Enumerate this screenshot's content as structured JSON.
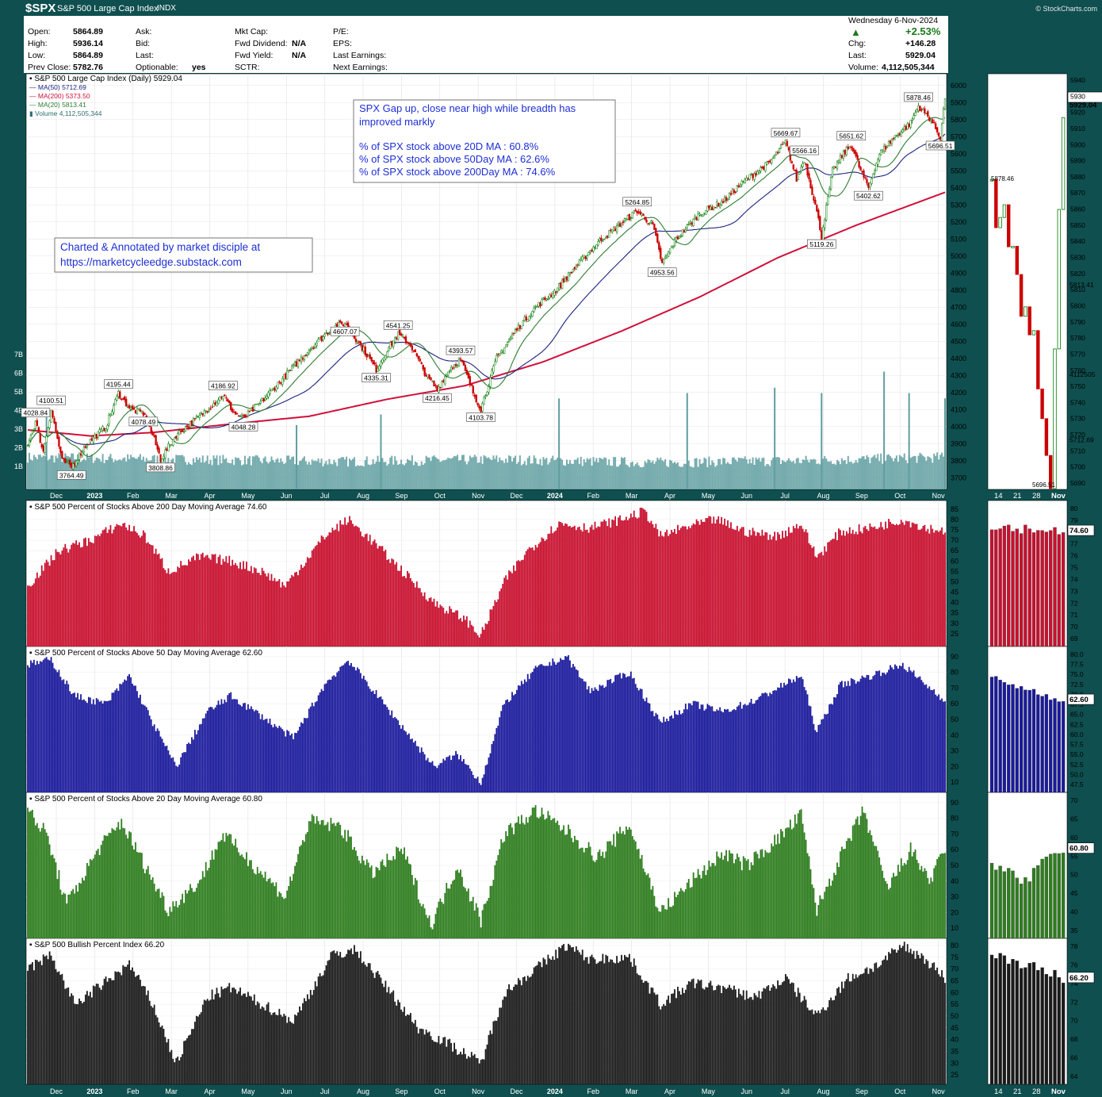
{
  "header": {
    "symbol": "$SPX",
    "name": "S&P 500 Large Cap Index",
    "type": "INDX",
    "credit": "© StockCharts.com"
  },
  "quote": {
    "open_label": "Open:",
    "open": "5864.89",
    "high_label": "High:",
    "high": "5936.14",
    "low_label": "Low:",
    "low": "5864.89",
    "prev_label": "Prev Close:",
    "prev": "5782.76",
    "ask_label": "Ask:",
    "bid_label": "Bid:",
    "last_label": "Last:",
    "optionable_label": "Optionable:",
    "optionable": "yes",
    "mktcap_label": "Mkt Cap:",
    "fwddiv_label": "Fwd Dividend:",
    "fwddiv": "N/A",
    "fwdyield_label": "Fwd Yield:",
    "fwdyield": "N/A",
    "sctr_label": "SCTR:",
    "pe_label": "P/E:",
    "eps_label": "EPS:",
    "lastearn_label": "Last Earnings:",
    "nextearn_label": "Next Earnings:",
    "date": "Wednesday  6-Nov-2024",
    "pct": "+2.53%",
    "chg_label": "Chg:",
    "chg": "+146.28",
    "last2_label": "Last:",
    "last": "5929.04",
    "volume_label": "Volume:",
    "volume": "4,112,505,344"
  },
  "colors": {
    "frame": "#0f4f4f",
    "up": "#007a00",
    "down": "#cc0000",
    "ma50": "#1a237e",
    "ma200": "#d0103a",
    "ma20": "#2e7d32",
    "volume": "#5f9ea0",
    "p200": "#c8102e",
    "p50": "#1a1a9c",
    "p20": "#2e7d1e",
    "bpi": "#1a1a1a"
  },
  "legend": {
    "title": "S&P 500 Large Cap Index (Daily) 5929.04",
    "ma50": "MA(50) 5712.69",
    "ma200": "MA(200) 5373.50",
    "ma20": "MA(20) 5813.41",
    "volume": "Volume 4,112,505,344"
  },
  "annotations": {
    "box1_line1": "SPX Gap up, close near high while breadth has",
    "box1_line2": "improved markly",
    "box1_line3": "% of SPX stock above 20D MA : 60.8%",
    "box1_line4": "% of SPX stock above 50Day MA :   62.6%",
    "box1_line5": "% of SPX stock above 200Day MA : 74.6%",
    "box2_line1": "Charted & Annotated by market disciple at",
    "box2_line2": "https://marketcycleedge.substack.com"
  },
  "chart_data": [
    {
      "type": "line",
      "title": "S&P 500 Large Cap Index (Daily) 5929.04",
      "x_months": [
        "Dec",
        "2023",
        "Feb",
        "Mar",
        "Apr",
        "May",
        "Jun",
        "Jul",
        "Aug",
        "Sep",
        "Oct",
        "Nov",
        "Dec",
        "2024",
        "Feb",
        "Mar",
        "Apr",
        "May",
        "Jun",
        "Jul",
        "Aug",
        "Sep",
        "Oct",
        "Nov"
      ],
      "ylim": [
        3650,
        6050
      ],
      "y_ticks": [
        3700,
        3800,
        3900,
        4000,
        4100,
        4200,
        4300,
        4400,
        4500,
        4600,
        4700,
        4800,
        4900,
        5000,
        5100,
        5200,
        5300,
        5400,
        5500,
        5600,
        5700,
        5800,
        5900,
        6000
      ],
      "volume_ticks": [
        "1B",
        "2B",
        "3B",
        "4B",
        "5B",
        "6B",
        "7B"
      ],
      "price_anchors": [
        [
          0,
          3900
        ],
        [
          5,
          4028.84
        ],
        [
          10,
          3850
        ],
        [
          15,
          4100.51
        ],
        [
          22,
          3800
        ],
        [
          28,
          3764.49
        ],
        [
          38,
          3900
        ],
        [
          50,
          4000
        ],
        [
          58,
          4195.44
        ],
        [
          66,
          4100
        ],
        [
          74,
          4078.49
        ],
        [
          80,
          3950
        ],
        [
          85,
          3808.86
        ],
        [
          95,
          3950
        ],
        [
          110,
          4060
        ],
        [
          125,
          4186.92
        ],
        [
          132,
          4080
        ],
        [
          138,
          4048.28
        ],
        [
          150,
          4150
        ],
        [
          165,
          4300
        ],
        [
          180,
          4450
        ],
        [
          195,
          4580
        ],
        [
          203,
          4607.07
        ],
        [
          215,
          4450
        ],
        [
          223,
          4335.31
        ],
        [
          230,
          4450
        ],
        [
          237,
          4541.25
        ],
        [
          245,
          4480
        ],
        [
          255,
          4300
        ],
        [
          262,
          4216.45
        ],
        [
          270,
          4340
        ],
        [
          277,
          4393.57
        ],
        [
          285,
          4200
        ],
        [
          290,
          4103.78
        ],
        [
          300,
          4400
        ],
        [
          312,
          4560
        ],
        [
          325,
          4700
        ],
        [
          338,
          4800
        ],
        [
          350,
          4930
        ],
        [
          365,
          5080
        ],
        [
          378,
          5180
        ],
        [
          390,
          5264.85
        ],
        [
          400,
          5180
        ],
        [
          406,
          4953.56
        ],
        [
          415,
          5100
        ],
        [
          430,
          5250
        ],
        [
          445,
          5320
        ],
        [
          460,
          5450
        ],
        [
          475,
          5550
        ],
        [
          485,
          5669.67
        ],
        [
          492,
          5450
        ],
        [
          497,
          5566.16
        ],
        [
          504,
          5300
        ],
        [
          508,
          5119.26
        ],
        [
          515,
          5500
        ],
        [
          522,
          5600
        ],
        [
          527,
          5651.62
        ],
        [
          533,
          5500
        ],
        [
          538,
          5402.62
        ],
        [
          545,
          5600
        ],
        [
          555,
          5700
        ],
        [
          565,
          5780
        ],
        [
          570,
          5878.46
        ],
        [
          578,
          5800
        ],
        [
          584,
          5696.51
        ],
        [
          587,
          5929.04
        ]
      ],
      "ma200_anchors": [
        [
          0,
          3980
        ],
        [
          40,
          3945
        ],
        [
          80,
          3965
        ],
        [
          130,
          4015
        ],
        [
          180,
          4060
        ],
        [
          230,
          4160
        ],
        [
          280,
          4240
        ],
        [
          330,
          4380
        ],
        [
          380,
          4560
        ],
        [
          430,
          4760
        ],
        [
          480,
          4990
        ],
        [
          530,
          5180
        ],
        [
          587,
          5373.5
        ]
      ],
      "price_labels": [
        {
          "text": "4028.84",
          "x": 5,
          "y": 4028.84
        },
        {
          "text": "4100.51",
          "x": 15,
          "y": 4100.51
        },
        {
          "text": "3764.49",
          "x": 28,
          "y": 3764.49
        },
        {
          "text": "4195.44",
          "x": 58,
          "y": 4195.44
        },
        {
          "text": "4078.49",
          "x": 74,
          "y": 4078.49
        },
        {
          "text": "3808.86",
          "x": 85,
          "y": 3808.86
        },
        {
          "text": "4186.92",
          "x": 125,
          "y": 4186.92
        },
        {
          "text": "4048.28",
          "x": 138,
          "y": 4048.28
        },
        {
          "text": "4607.07",
          "x": 203,
          "y": 4607.07
        },
        {
          "text": "4335.31",
          "x": 223,
          "y": 4335.31
        },
        {
          "text": "4541.25",
          "x": 237,
          "y": 4541.25
        },
        {
          "text": "4216.45",
          "x": 262,
          "y": 4216.45
        },
        {
          "text": "4393.57",
          "x": 277,
          "y": 4393.57
        },
        {
          "text": "4103.78",
          "x": 290,
          "y": 4103.78
        },
        {
          "text": "5264.85",
          "x": 390,
          "y": 5264.85
        },
        {
          "text": "4953.56",
          "x": 406,
          "y": 4953.56
        },
        {
          "text": "5669.67",
          "x": 485,
          "y": 5669.67
        },
        {
          "text": "5566.16",
          "x": 497,
          "y": 5566.16
        },
        {
          "text": "5119.26",
          "x": 508,
          "y": 5119.26
        },
        {
          "text": "5651.62",
          "x": 527,
          "y": 5651.62
        },
        {
          "text": "5402.62",
          "x": 538,
          "y": 5402.62
        },
        {
          "text": "5878.46",
          "x": 570,
          "y": 5878.46
        },
        {
          "text": "5696.51",
          "x": 584,
          "y": 5696.51
        }
      ],
      "last_value": "5929.04"
    },
    {
      "type": "bar",
      "title": "S&P 500 Percent of Stocks Above 200 Day Moving Average 74.60",
      "ylim": [
        20,
        88
      ],
      "y_ticks": [
        25,
        30,
        35,
        40,
        45,
        50,
        55,
        60,
        65,
        70,
        75,
        80,
        85
      ],
      "anchors": [
        [
          0,
          48
        ],
        [
          20,
          65
        ],
        [
          40,
          70
        ],
        [
          60,
          78
        ],
        [
          75,
          72
        ],
        [
          90,
          55
        ],
        [
          110,
          62
        ],
        [
          130,
          60
        ],
        [
          150,
          55
        ],
        [
          165,
          48
        ],
        [
          190,
          72
        ],
        [
          205,
          80
        ],
        [
          220,
          70
        ],
        [
          240,
          55
        ],
        [
          260,
          40
        ],
        [
          280,
          32
        ],
        [
          290,
          24
        ],
        [
          305,
          50
        ],
        [
          320,
          65
        ],
        [
          340,
          78
        ],
        [
          360,
          76
        ],
        [
          380,
          80
        ],
        [
          395,
          84
        ],
        [
          405,
          72
        ],
        [
          420,
          76
        ],
        [
          440,
          80
        ],
        [
          460,
          74
        ],
        [
          480,
          72
        ],
        [
          495,
          78
        ],
        [
          505,
          62
        ],
        [
          520,
          74
        ],
        [
          540,
          76
        ],
        [
          560,
          80
        ],
        [
          575,
          76
        ],
        [
          587,
          74.6
        ]
      ],
      "last_value": "74.60"
    },
    {
      "type": "bar",
      "title": "S&P 500 Percent of Stocks Above 50 Day Moving Average 62.60",
      "ylim": [
        5,
        95
      ],
      "y_ticks": [
        10,
        20,
        30,
        40,
        50,
        60,
        70,
        80,
        90
      ],
      "anchors": [
        [
          0,
          85
        ],
        [
          15,
          88
        ],
        [
          30,
          65
        ],
        [
          50,
          60
        ],
        [
          65,
          78
        ],
        [
          80,
          48
        ],
        [
          95,
          20
        ],
        [
          115,
          55
        ],
        [
          130,
          65
        ],
        [
          150,
          52
        ],
        [
          170,
          38
        ],
        [
          190,
          72
        ],
        [
          205,
          88
        ],
        [
          220,
          70
        ],
        [
          240,
          45
        ],
        [
          260,
          20
        ],
        [
          275,
          28
        ],
        [
          290,
          10
        ],
        [
          305,
          60
        ],
        [
          325,
          82
        ],
        [
          345,
          90
        ],
        [
          360,
          68
        ],
        [
          385,
          80
        ],
        [
          405,
          48
        ],
        [
          425,
          60
        ],
        [
          445,
          55
        ],
        [
          465,
          62
        ],
        [
          480,
          70
        ],
        [
          495,
          78
        ],
        [
          505,
          42
        ],
        [
          520,
          72
        ],
        [
          540,
          78
        ],
        [
          560,
          85
        ],
        [
          575,
          72
        ],
        [
          587,
          62.6
        ]
      ],
      "last_value": "62.60"
    },
    {
      "type": "bar",
      "title": "S&P 500 Percent of Stocks Above 20 Day Moving Average 60.80",
      "ylim": [
        5,
        95
      ],
      "y_ticks": [
        10,
        20,
        30,
        40,
        50,
        60,
        70,
        80,
        90
      ],
      "anchors": [
        [
          0,
          85
        ],
        [
          12,
          70
        ],
        [
          25,
          25
        ],
        [
          45,
          60
        ],
        [
          60,
          78
        ],
        [
          75,
          50
        ],
        [
          90,
          22
        ],
        [
          110,
          40
        ],
        [
          125,
          70
        ],
        [
          145,
          50
        ],
        [
          165,
          30
        ],
        [
          180,
          78
        ],
        [
          200,
          75
        ],
        [
          220,
          45
        ],
        [
          240,
          60
        ],
        [
          258,
          12
        ],
        [
          275,
          50
        ],
        [
          290,
          15
        ],
        [
          305,
          70
        ],
        [
          325,
          85
        ],
        [
          345,
          72
        ],
        [
          365,
          55
        ],
        [
          385,
          76
        ],
        [
          405,
          20
        ],
        [
          425,
          40
        ],
        [
          445,
          58
        ],
        [
          460,
          50
        ],
        [
          478,
          65
        ],
        [
          495,
          82
        ],
        [
          505,
          22
        ],
        [
          520,
          55
        ],
        [
          535,
          85
        ],
        [
          550,
          35
        ],
        [
          565,
          60
        ],
        [
          578,
          40
        ],
        [
          587,
          60.8
        ]
      ],
      "last_value": "60.80"
    },
    {
      "type": "bar",
      "title": "S&P 500 Bullish Percent Index 66.20",
      "ylim": [
        22,
        82
      ],
      "y_ticks": [
        25,
        30,
        35,
        40,
        45,
        50,
        55,
        60,
        65,
        70,
        75,
        80
      ],
      "anchors": [
        [
          0,
          70
        ],
        [
          15,
          76
        ],
        [
          30,
          55
        ],
        [
          45,
          62
        ],
        [
          65,
          72
        ],
        [
          80,
          55
        ],
        [
          95,
          30
        ],
        [
          115,
          58
        ],
        [
          130,
          62
        ],
        [
          150,
          55
        ],
        [
          170,
          48
        ],
        [
          195,
          76
        ],
        [
          210,
          78
        ],
        [
          230,
          62
        ],
        [
          250,
          45
        ],
        [
          270,
          38
        ],
        [
          290,
          30
        ],
        [
          305,
          60
        ],
        [
          325,
          70
        ],
        [
          345,
          80
        ],
        [
          360,
          74
        ],
        [
          385,
          75
        ],
        [
          405,
          55
        ],
        [
          425,
          64
        ],
        [
          445,
          62
        ],
        [
          465,
          58
        ],
        [
          485,
          66
        ],
        [
          505,
          50
        ],
        [
          525,
          66
        ],
        [
          545,
          72
        ],
        [
          560,
          80
        ],
        [
          575,
          74
        ],
        [
          587,
          66.2
        ]
      ],
      "last_value": "66.20"
    }
  ],
  "detail_panels": [
    {
      "x_ticks": [
        "14",
        "21",
        "28",
        "Nov"
      ],
      "y_ticks": [
        "5690",
        "5700",
        "5710",
        "5720",
        "5730",
        "5740",
        "5750",
        "5760",
        "5770",
        "5780",
        "5790",
        "5800",
        "5810",
        "5820",
        "5830",
        "5840",
        "5850",
        "5860",
        "5870",
        "5880",
        "5890",
        "5900",
        "5910",
        "5920",
        "5930",
        "5940"
      ],
      "labels": [
        "5929.04",
        "5813.41",
        "5712.69",
        "4112505",
        "5878.46",
        "5696.51"
      ]
    },
    {
      "y_ticks": [
        "69",
        "70",
        "71",
        "72",
        "73",
        "74",
        "75",
        "76",
        "77",
        "78",
        "79",
        "80"
      ],
      "label": "74.60"
    },
    {
      "y_ticks": [
        "47.5",
        "50.0",
        "52.5",
        "55.0",
        "57.5",
        "60.0",
        "62.5",
        "65.0",
        "67.5",
        "70.0",
        "72.5",
        "75.0",
        "77.5",
        "80.0"
      ],
      "label": "62.60"
    },
    {
      "y_ticks": [
        "35",
        "40",
        "45",
        "50",
        "55",
        "60",
        "65",
        "70"
      ],
      "label": "60.80"
    },
    {
      "x_ticks": [
        "14",
        "21",
        "28",
        "Nov"
      ],
      "y_ticks": [
        "64",
        "66",
        "68",
        "70",
        "72",
        "74",
        "76",
        "78"
      ],
      "label": "66.20"
    }
  ]
}
